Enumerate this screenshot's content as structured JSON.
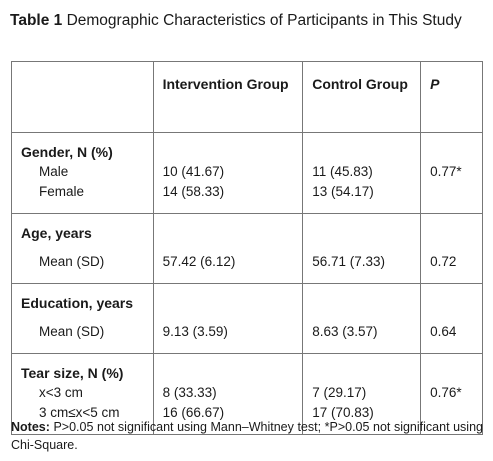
{
  "caption": {
    "label": "Table 1",
    "text": "Demographic Characteristics of Participants in This Study"
  },
  "table": {
    "headers": [
      "",
      "Intervention Group",
      "Control Group",
      "P"
    ],
    "groups": [
      {
        "title": "Gender, N (%)",
        "rows": [
          {
            "label": "Male",
            "intervention": "10 (41.67)",
            "control": "11 (45.83)",
            "p": "0.77*"
          },
          {
            "label": "Female",
            "intervention": "14 (58.33)",
            "control": "13 (54.17)",
            "p": ""
          }
        ]
      },
      {
        "title": "Age, years",
        "rows": [
          {
            "label": "Mean (SD)",
            "intervention": "57.42 (6.12)",
            "control": "56.71 (7.33)",
            "p": "0.72"
          }
        ]
      },
      {
        "title": "Education, years",
        "rows": [
          {
            "label": "Mean (SD)",
            "intervention": "9.13 (3.59)",
            "control": "8.63 (3.57)",
            "p": "0.64"
          }
        ]
      },
      {
        "title": "Tear size, N (%)",
        "rows": [
          {
            "label": "x<3 cm",
            "intervention": "8 (33.33)",
            "control": "7 (29.17)",
            "p": "0.76*"
          },
          {
            "label": "3 cm≤x<5 cm",
            "intervention": "16 (66.67)",
            "control": "17 (70.83)",
            "p": ""
          }
        ]
      }
    ]
  },
  "notes": {
    "label": "Notes:",
    "text": "P>0.05 not significant using Mann–Whitney test; *P>0.05 not significant using Chi-Square."
  }
}
